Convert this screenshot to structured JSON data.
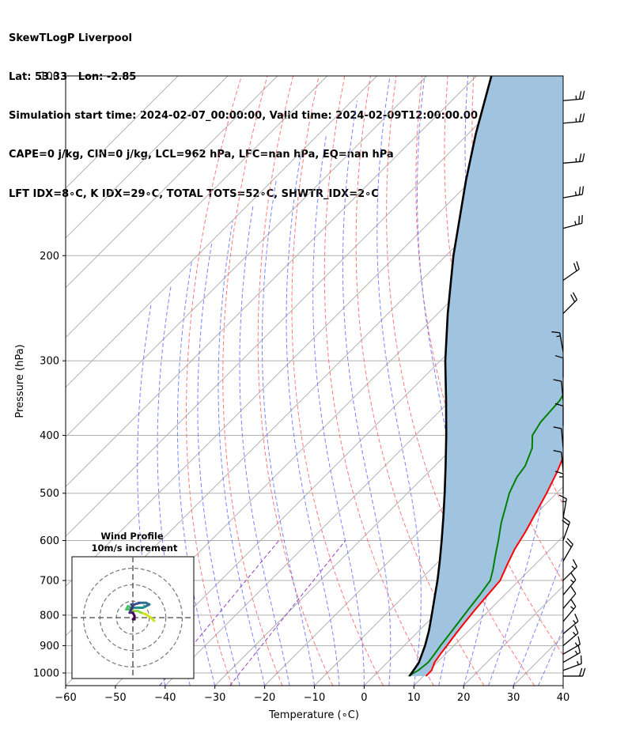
{
  "title_lines": [
    "SkewTLogP Liverpool",
    "Lat: 53.33   Lon: -2.85",
    "Simulation start time: 2024-02-07_00:00:00, Valid time: 2024-02-09T12:00:00.00",
    "CAPE=0 j/kg, CIN=0 j/kg, LCL=962 hPa, LFC=nan hPa, EQ=nan hPa",
    "LFT IDX=8∘C, K IDX=29∘C, TOTAL TOTS=52∘C, SHWTR_IDX=2∘C"
  ],
  "chart_data": {
    "type": "skewt-logp",
    "xlabel": "Temperature (∘C)",
    "ylabel": "Pressure (hPa)",
    "xlim": [
      -60,
      40
    ],
    "ylim": [
      1050,
      100
    ],
    "x_ticks": [
      "−60",
      "−50",
      "−40",
      "−30",
      "−20",
      "−10",
      "0",
      "10",
      "20",
      "30",
      "40"
    ],
    "x_tick_values": [
      -60,
      -50,
      -40,
      -30,
      -20,
      -10,
      0,
      10,
      20,
      30,
      40
    ],
    "y_ticks": [
      "100",
      "200",
      "300",
      "400",
      "500",
      "600",
      "700",
      "800",
      "900",
      "1000"
    ],
    "y_tick_values": [
      100,
      200,
      300,
      400,
      500,
      600,
      700,
      800,
      900,
      1000
    ],
    "grid": true,
    "colors": {
      "temperature": "#ff0000",
      "dewpoint": "#008000",
      "parcel": "#000000",
      "fill": "#a0c4e0",
      "dry_adiabat": "#ff6060",
      "moist_adiabat": "#6070ff",
      "mixing_ratio": "#9040c0",
      "isotherm": "#aaaaaa"
    },
    "temperature_profile": [
      [
        1012,
        10.5
      ],
      [
        990,
        10.5
      ],
      [
        960,
        9.5
      ],
      [
        930,
        9.0
      ],
      [
        900,
        8.6
      ],
      [
        860,
        8.0
      ],
      [
        820,
        7.5
      ],
      [
        780,
        7.0
      ],
      [
        740,
        6.6
      ],
      [
        700,
        6.2
      ],
      [
        660,
        4.5
      ],
      [
        620,
        2.8
      ],
      [
        580,
        1.5
      ],
      [
        540,
        -0.2
      ],
      [
        500,
        -2.0
      ],
      [
        460,
        -4.2
      ],
      [
        430,
        -6.3
      ],
      [
        400,
        -8.4
      ],
      [
        370,
        -10.6
      ],
      [
        340,
        -13.0
      ],
      [
        320,
        -13.6
      ],
      [
        300,
        -14.2
      ],
      [
        280,
        -14.5
      ],
      [
        260,
        -14.6
      ],
      [
        240,
        -14.8
      ],
      [
        220,
        -15.0
      ],
      [
        200,
        -15.6
      ],
      [
        180,
        -16.5
      ],
      [
        160,
        -17.4
      ],
      [
        140,
        -18.3
      ],
      [
        120,
        -19.4
      ],
      [
        110,
        -20.3
      ],
      [
        100,
        -21.0
      ]
    ],
    "dewpoint_profile": [
      [
        1012,
        7.0
      ],
      [
        990,
        7.8
      ],
      [
        960,
        8.2
      ],
      [
        930,
        7.8
      ],
      [
        900,
        7.3
      ],
      [
        860,
        6.8
      ],
      [
        820,
        6.2
      ],
      [
        780,
        5.6
      ],
      [
        740,
        5.0
      ],
      [
        700,
        4.2
      ],
      [
        670,
        2.5
      ],
      [
        640,
        0.5
      ],
      [
        600,
        -2.2
      ],
      [
        560,
        -5.2
      ],
      [
        520,
        -8.0
      ],
      [
        500,
        -9.5
      ],
      [
        470,
        -11.2
      ],
      [
        450,
        -11.8
      ],
      [
        420,
        -14.0
      ],
      [
        400,
        -16.5
      ],
      [
        380,
        -17.5
      ],
      [
        350,
        -18.0
      ],
      [
        320,
        -19.8
      ],
      [
        300,
        -21.0
      ],
      [
        280,
        -23.5
      ],
      [
        260,
        -27.0
      ],
      [
        240,
        -31.0
      ],
      [
        220,
        -33.6
      ],
      [
        200,
        -37.0
      ],
      [
        180,
        -40.0
      ],
      [
        160,
        -43.5
      ],
      [
        140,
        -47.0
      ],
      [
        120,
        -52.0
      ],
      [
        100,
        -58.0
      ]
    ],
    "parcel_profile": [
      [
        1012,
        7.2
      ],
      [
        962,
        6.4
      ],
      [
        900,
        4.2
      ],
      [
        850,
        2.0
      ],
      [
        800,
        -0.6
      ],
      [
        750,
        -3.4
      ],
      [
        700,
        -6.4
      ],
      [
        650,
        -9.8
      ],
      [
        600,
        -13.6
      ],
      [
        550,
        -17.8
      ],
      [
        500,
        -22.5
      ],
      [
        450,
        -27.8
      ],
      [
        400,
        -33.8
      ],
      [
        350,
        -40.8
      ],
      [
        300,
        -49.0
      ],
      [
        250,
        -58.0
      ],
      [
        200,
        -68.5
      ],
      [
        150,
        -81.0
      ],
      [
        125,
        -88.5
      ],
      [
        100,
        -97.0
      ]
    ],
    "wind_barbs": [
      {
        "p": 1012,
        "speed_kt": 20,
        "dir_deg": 270
      },
      {
        "p": 990,
        "speed_kt": 15,
        "dir_deg": 250
      },
      {
        "p": 960,
        "speed_kt": 15,
        "dir_deg": 240
      },
      {
        "p": 930,
        "speed_kt": 15,
        "dir_deg": 240
      },
      {
        "p": 900,
        "speed_kt": 15,
        "dir_deg": 230
      },
      {
        "p": 860,
        "speed_kt": 15,
        "dir_deg": 230
      },
      {
        "p": 820,
        "speed_kt": 15,
        "dir_deg": 220
      },
      {
        "p": 780,
        "speed_kt": 10,
        "dir_deg": 220
      },
      {
        "p": 740,
        "speed_kt": 15,
        "dir_deg": 220
      },
      {
        "p": 700,
        "speed_kt": 15,
        "dir_deg": 225
      },
      {
        "p": 650,
        "speed_kt": 20,
        "dir_deg": 210
      },
      {
        "p": 600,
        "speed_kt": 20,
        "dir_deg": 200
      },
      {
        "p": 550,
        "speed_kt": 15,
        "dir_deg": 190
      },
      {
        "p": 500,
        "speed_kt": 15,
        "dir_deg": 180
      },
      {
        "p": 460,
        "speed_kt": 10,
        "dir_deg": 175
      },
      {
        "p": 420,
        "speed_kt": 10,
        "dir_deg": 175
      },
      {
        "p": 385,
        "speed_kt": 10,
        "dir_deg": 180
      },
      {
        "p": 350,
        "speed_kt": 10,
        "dir_deg": 175
      },
      {
        "p": 320,
        "speed_kt": 10,
        "dir_deg": 180
      },
      {
        "p": 290,
        "speed_kt": 15,
        "dir_deg": 170
      },
      {
        "p": 250,
        "speed_kt": 20,
        "dir_deg": 225
      },
      {
        "p": 220,
        "speed_kt": 20,
        "dir_deg": 235
      },
      {
        "p": 180,
        "speed_kt": 25,
        "dir_deg": 255
      },
      {
        "p": 160,
        "speed_kt": 25,
        "dir_deg": 260
      },
      {
        "p": 140,
        "speed_kt": 25,
        "dir_deg": 265
      },
      {
        "p": 120,
        "speed_kt": 25,
        "dir_deg": 265
      },
      {
        "p": 110,
        "speed_kt": 25,
        "dir_deg": 265
      }
    ],
    "hodograph": {
      "title_line1": "Wind Profile",
      "title_line2": "10m/s increment",
      "rings_ms": [
        10,
        20,
        30
      ],
      "max_ms": 37,
      "points_uv": [
        [
          13,
          -2
        ],
        [
          11,
          0
        ],
        [
          8,
          2
        ],
        [
          5,
          3
        ],
        [
          3,
          4
        ],
        [
          1,
          4
        ],
        [
          -2,
          5
        ],
        [
          -4,
          5
        ],
        [
          -3,
          7
        ],
        [
          -1,
          6
        ],
        [
          3,
          6
        ],
        [
          6,
          6
        ],
        [
          8,
          7
        ],
        [
          10,
          8
        ],
        [
          8,
          9
        ],
        [
          4,
          9
        ],
        [
          1,
          8
        ],
        [
          -1,
          8
        ],
        [
          0,
          7
        ],
        [
          -1,
          5
        ],
        [
          -2,
          3
        ],
        [
          0,
          3
        ],
        [
          1,
          1
        ],
        [
          1,
          -1
        ],
        [
          0,
          -1
        ]
      ]
    }
  }
}
